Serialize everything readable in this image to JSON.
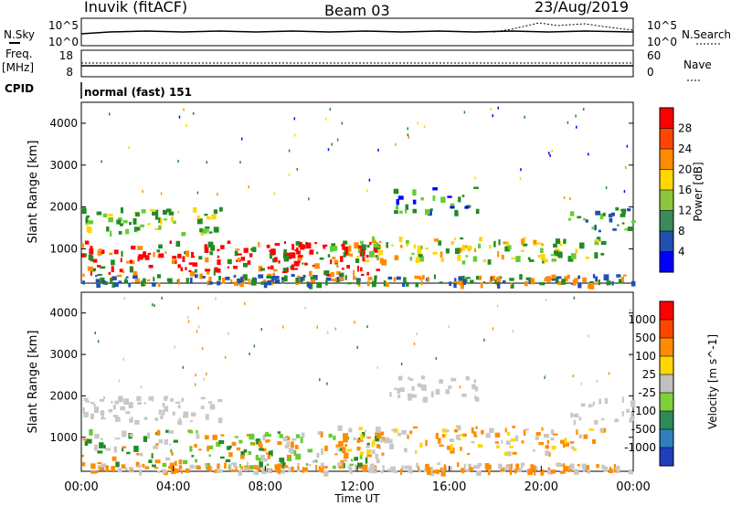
{
  "header": {
    "site": "Inuvik (fitACF)",
    "beam": "Beam 03",
    "date": "23/Aug/2019"
  },
  "left_labels": {
    "nsky": "N.Sky",
    "freq": "Freq.",
    "freq_unit": "[MHz]",
    "cpid": "CPID"
  },
  "right_labels": {
    "nsearch": "N.Search",
    "nave": "Nave"
  },
  "nsky_ticks": [
    "10^5",
    "10^0"
  ],
  "nsearch_ticks": [
    "10^5",
    "10^0"
  ],
  "freq_ticks": [
    "18",
    "8"
  ],
  "nave_ticks": [
    "60",
    "0"
  ],
  "cpid_text": "normal (fast) 151",
  "colors": {
    "red": "#ff0000",
    "orange": "#ff8c00",
    "yellow": "#ffd700",
    "green": "#228b22",
    "lightgreen": "#66cc33",
    "gray": "#c8c8c8",
    "blue": "#0000ff"
  },
  "chart_data": [
    {
      "type": "heatmap",
      "title": "Power",
      "ylabel": "Slant Range [km]",
      "xlabel": "Time UT",
      "x_ticks": [
        "00:00",
        "04:00",
        "08:00",
        "12:00",
        "16:00",
        "20:00",
        "00:00"
      ],
      "y_ticks": [
        1000,
        2000,
        3000,
        4000
      ],
      "ylim": [
        180,
        4500
      ],
      "colorbar": {
        "label": "Power [dB]",
        "ticks": [
          4,
          8,
          12,
          16,
          20,
          24,
          28
        ],
        "colors": [
          "#0000ff",
          "#2050b0",
          "#3a8a5a",
          "#8cc63f",
          "#ffd700",
          "#ff8c00",
          "#ff4500",
          "#ff0000"
        ]
      }
    },
    {
      "type": "heatmap",
      "title": "Velocity",
      "ylabel": "Slant Range [km]",
      "xlabel": "Time UT",
      "x_ticks": [
        "00:00",
        "04:00",
        "08:00",
        "12:00",
        "16:00",
        "20:00",
        "00:00"
      ],
      "y_ticks": [
        1000,
        2000,
        3000,
        4000
      ],
      "ylim": [
        180,
        4500
      ],
      "colorbar": {
        "label": "Velocity [m s^-1]",
        "ticks": [
          1000,
          500,
          100,
          25,
          -25,
          -100,
          -500,
          -1000
        ],
        "colors": [
          "#1f3fbf",
          "#2f7fbf",
          "#2e8b57",
          "#7fd13b",
          "#c0c0c0",
          "#ffd700",
          "#ff8c00",
          "#ff4500",
          "#ff0000"
        ]
      }
    }
  ]
}
